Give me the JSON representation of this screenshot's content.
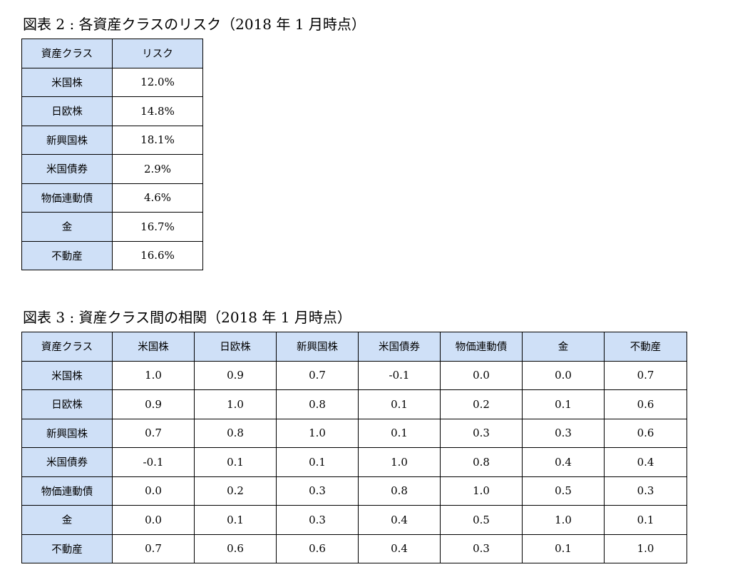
{
  "fig2": {
    "caption": "図表 2 : 各資産クラスのリスク（2018 年 1 月時点）",
    "header": [
      "資産クラス",
      "リスク"
    ],
    "rows": [
      [
        "米国株",
        "12.0%"
      ],
      [
        "日欧株",
        "14.8%"
      ],
      [
        "新興国株",
        "18.1%"
      ],
      [
        "米国債券",
        "2.9%"
      ],
      [
        "物価連動債",
        "4.6%"
      ],
      [
        "金",
        "16.7%"
      ],
      [
        "不動産",
        "16.6%"
      ]
    ]
  },
  "fig3": {
    "caption": "図表 3 : 資産クラス間の相関（2018 年 1 月時点）",
    "header": [
      "資産クラス",
      "米国株",
      "日欧株",
      "新興国株",
      "米国債券",
      "物価連動債",
      "金",
      "不動産"
    ],
    "rows": [
      [
        "米国株",
        "1.0",
        "0.9",
        "0.7",
        "-0.1",
        "0.0",
        "0.0",
        "0.7"
      ],
      [
        "日欧株",
        "0.9",
        "1.0",
        "0.8",
        "0.1",
        "0.2",
        "0.1",
        "0.6"
      ],
      [
        "新興国株",
        "0.7",
        "0.8",
        "1.0",
        "0.1",
        "0.3",
        "0.3",
        "0.6"
      ],
      [
        "米国債券",
        "-0.1",
        "0.1",
        "0.1",
        "1.0",
        "0.8",
        "0.4",
        "0.4"
      ],
      [
        "物価連動債",
        "0.0",
        "0.2",
        "0.3",
        "0.8",
        "1.0",
        "0.5",
        "0.3"
      ],
      [
        "金",
        "0.0",
        "0.1",
        "0.3",
        "0.4",
        "0.5",
        "1.0",
        "0.1"
      ],
      [
        "不動産",
        "0.7",
        "0.6",
        "0.6",
        "0.4",
        "0.3",
        "0.1",
        "1.0"
      ]
    ]
  },
  "colors": {
    "header_fill": "#cfe0f7",
    "border": "#000000"
  }
}
